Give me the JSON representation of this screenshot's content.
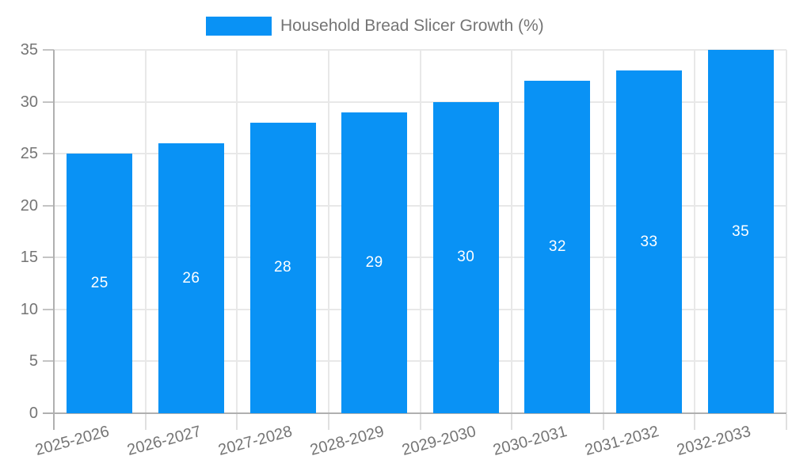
{
  "chart_data": {
    "type": "bar",
    "title": "",
    "legend": {
      "label": "Household Bread Slicer Growth (%)",
      "position": "top-center"
    },
    "categories": [
      "2025-2026",
      "2026-2027",
      "2027-2028",
      "2028-2029",
      "2029-2030",
      "2030-2031",
      "2031-2032",
      "2032-2033"
    ],
    "values": [
      25,
      26,
      28,
      29,
      30,
      32,
      33,
      35
    ],
    "bar_value_labels": [
      "25",
      "26",
      "28",
      "29",
      "30",
      "32",
      "33",
      "35"
    ],
    "xlabel": "",
    "ylabel": "",
    "ylim": [
      0,
      35
    ],
    "yticks": [
      0,
      5,
      10,
      15,
      20,
      25,
      30,
      35
    ],
    "grid": true,
    "colors": {
      "bar": "#0992f5",
      "bar_value_text": "#ffffff",
      "axis_text": "#757575",
      "gridline": "#e8e8e8",
      "axis_line": "#b0b0b0",
      "y_tick": "#c4c4c4",
      "x_tick": "#e0e0e0",
      "background": "#ffffff"
    }
  }
}
